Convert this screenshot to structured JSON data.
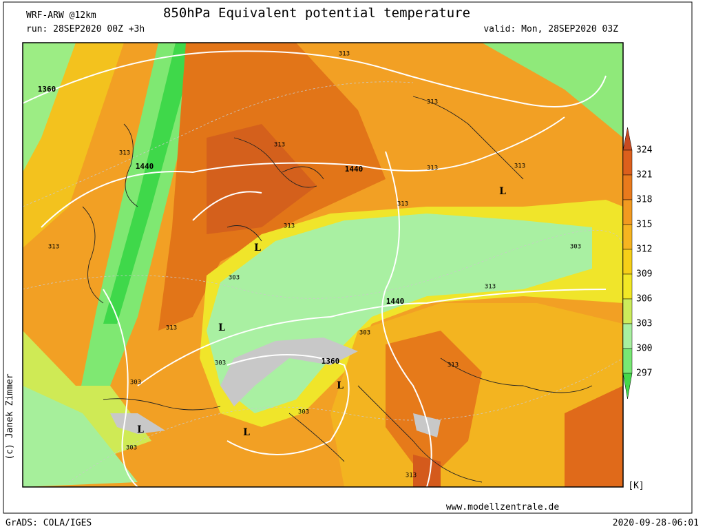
{
  "header": {
    "model": "WRF-ARW @12km",
    "title": "850hPa Equivalent potential temperature",
    "run": "run: 28SEP2020 00Z +3h",
    "valid": "valid: Mon, 28SEP2020 03Z"
  },
  "map": {
    "labels": [
      "1360",
      "1440",
      "1440",
      "1440",
      "1360",
      "313",
      "313",
      "313",
      "313",
      "313",
      "313",
      "313",
      "313",
      "313",
      "303",
      "313",
      "313",
      "313",
      "313",
      "303",
      "303",
      "303",
      "303",
      "303",
      "303",
      "L",
      "L",
      "L",
      "L",
      "L",
      "L"
    ]
  },
  "colorbar": {
    "levels": [
      324,
      321,
      318,
      315,
      312,
      309,
      306,
      303,
      300,
      297
    ],
    "colors": [
      "#c84a20",
      "#dc5f1c",
      "#e97a1c",
      "#f29a20",
      "#f6b420",
      "#f6cf18",
      "#f2e825",
      "#ccec5c",
      "#a8f0a0",
      "#78e874",
      "#45d84a"
    ],
    "unit": "[K]"
  },
  "footer": {
    "credit": "(c) Janek Zimmer",
    "website": "www.modellzentrale.de",
    "software": "GrADS: COLA/IGES",
    "timestamp": "2020-09-28-06:01"
  }
}
